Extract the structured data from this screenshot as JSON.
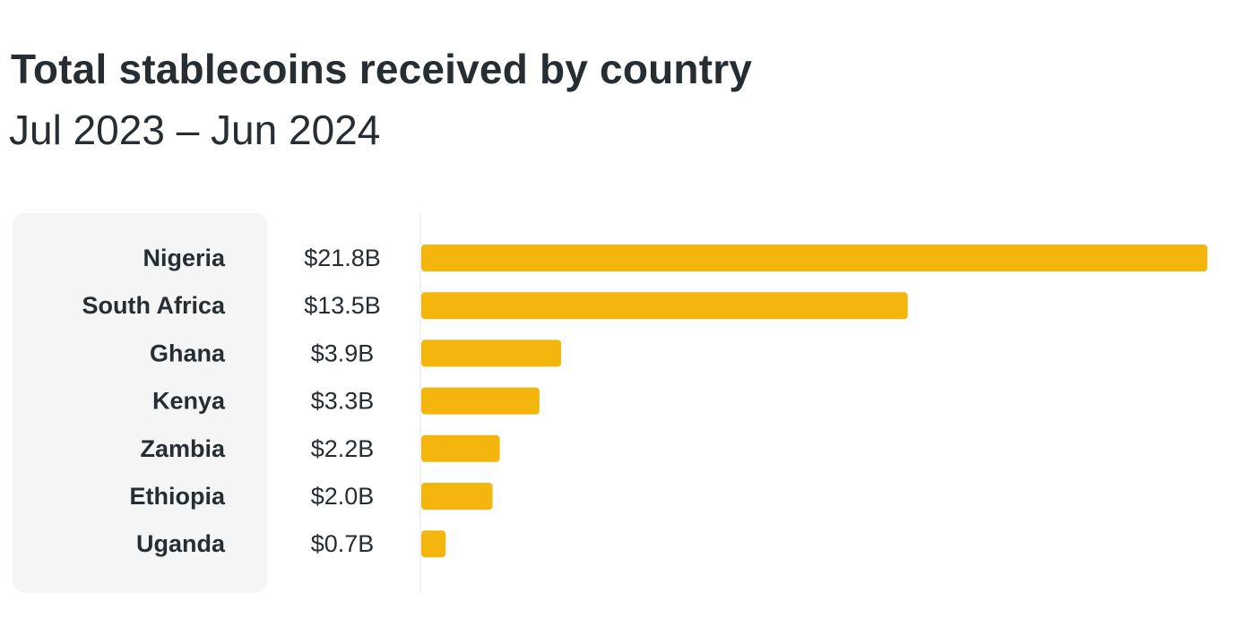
{
  "chart_data": {
    "type": "bar",
    "orientation": "horizontal",
    "title": "Total stablecoins received by country",
    "subtitle": "Jul 2023 – Jun 2024",
    "categories": [
      "Nigeria",
      "South Africa",
      "Ghana",
      "Kenya",
      "Zambia",
      "Ethiopia",
      "Uganda"
    ],
    "values": [
      21.8,
      13.5,
      3.9,
      3.3,
      2.2,
      2.0,
      0.7
    ],
    "value_labels": [
      "$21.8B",
      "$13.5B",
      "$3.9B",
      "$3.3B",
      "$2.2B",
      "$2.0B",
      "$0.7B"
    ],
    "xlim": [
      0,
      21.8
    ],
    "grid": false,
    "legend": "none",
    "bar_color": "#f4b60d",
    "baseline_color": "#eeeeee"
  }
}
